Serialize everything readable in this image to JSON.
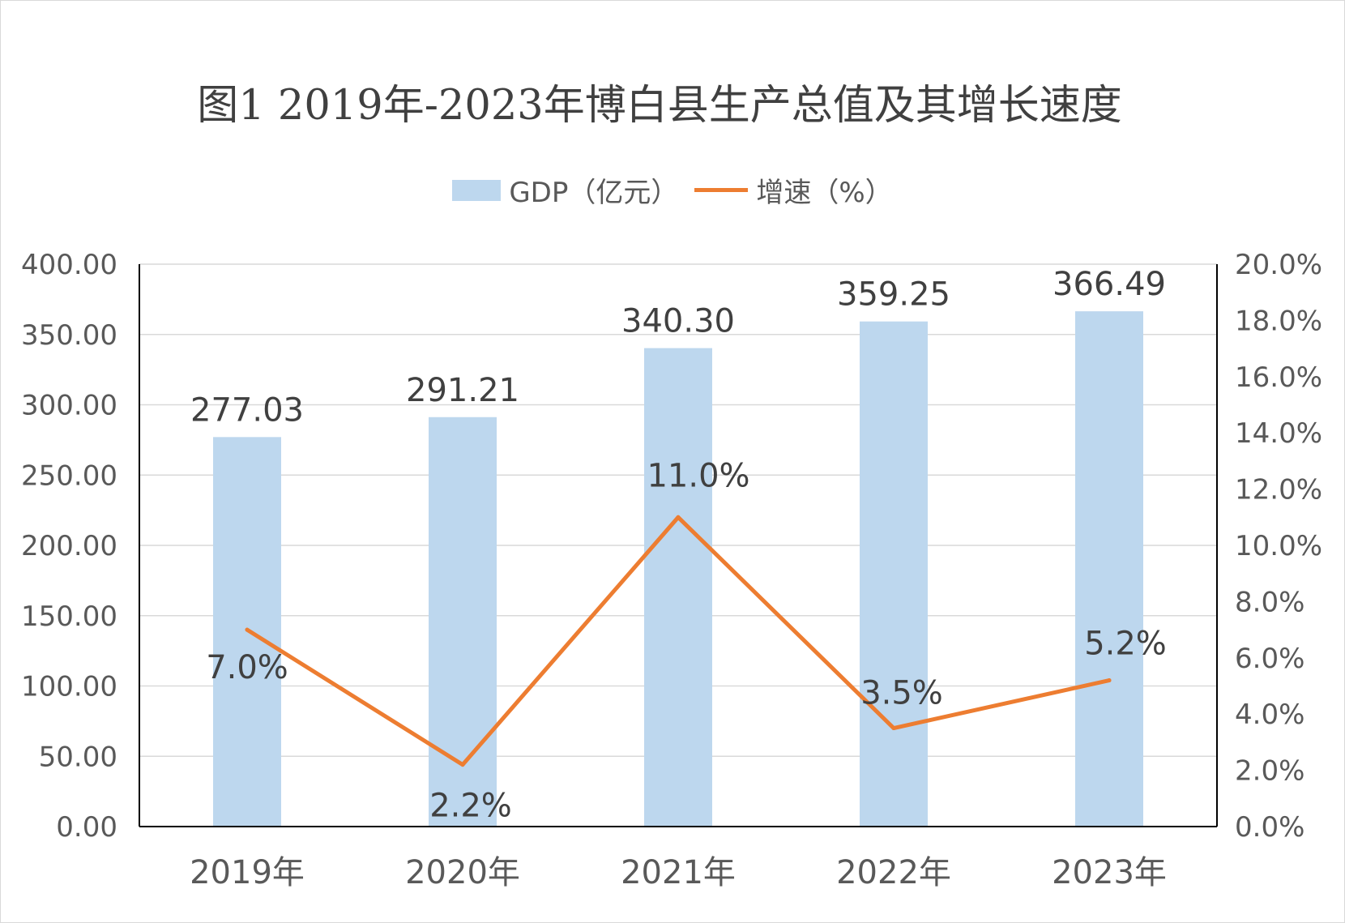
{
  "chart_data": {
    "type": "bar",
    "title": "图1 2019年-2023年博白县生产总值及其增长速度",
    "categories": [
      "2019年",
      "2020年",
      "2021年",
      "2022年",
      "2023年"
    ],
    "series": [
      {
        "name": "GDP（亿元）",
        "type": "bar",
        "axis": "left",
        "values": [
          277.03,
          291.21,
          340.3,
          359.25,
          366.49
        ],
        "labels": [
          "277.03",
          "291.21",
          "340.30",
          "359.25",
          "366.49"
        ],
        "color": "#bdd7ee"
      },
      {
        "name": "增速（%）",
        "type": "line",
        "axis": "right",
        "values": [
          7.0,
          2.2,
          11.0,
          3.5,
          5.2
        ],
        "labels": [
          "7.0%",
          "2.2%",
          "11.0%",
          "3.5%",
          "5.2%"
        ],
        "color": "#ed7d31"
      }
    ],
    "y_left": {
      "ylim": [
        0,
        400
      ],
      "ticks": [
        "0.00",
        "50.00",
        "100.00",
        "150.00",
        "200.00",
        "250.00",
        "300.00",
        "350.00",
        "400.00"
      ]
    },
    "y_right": {
      "ylim": [
        0,
        20
      ],
      "ticks": [
        "0.0%",
        "2.0%",
        "4.0%",
        "6.0%",
        "8.0%",
        "10.0%",
        "12.0%",
        "14.0%",
        "16.0%",
        "18.0%",
        "20.0%"
      ]
    },
    "grid": true,
    "legend_position": "top",
    "colors": {
      "text": "#595959",
      "label": "#404040",
      "grid": "#d9d9d9",
      "axis": "#000000"
    }
  }
}
